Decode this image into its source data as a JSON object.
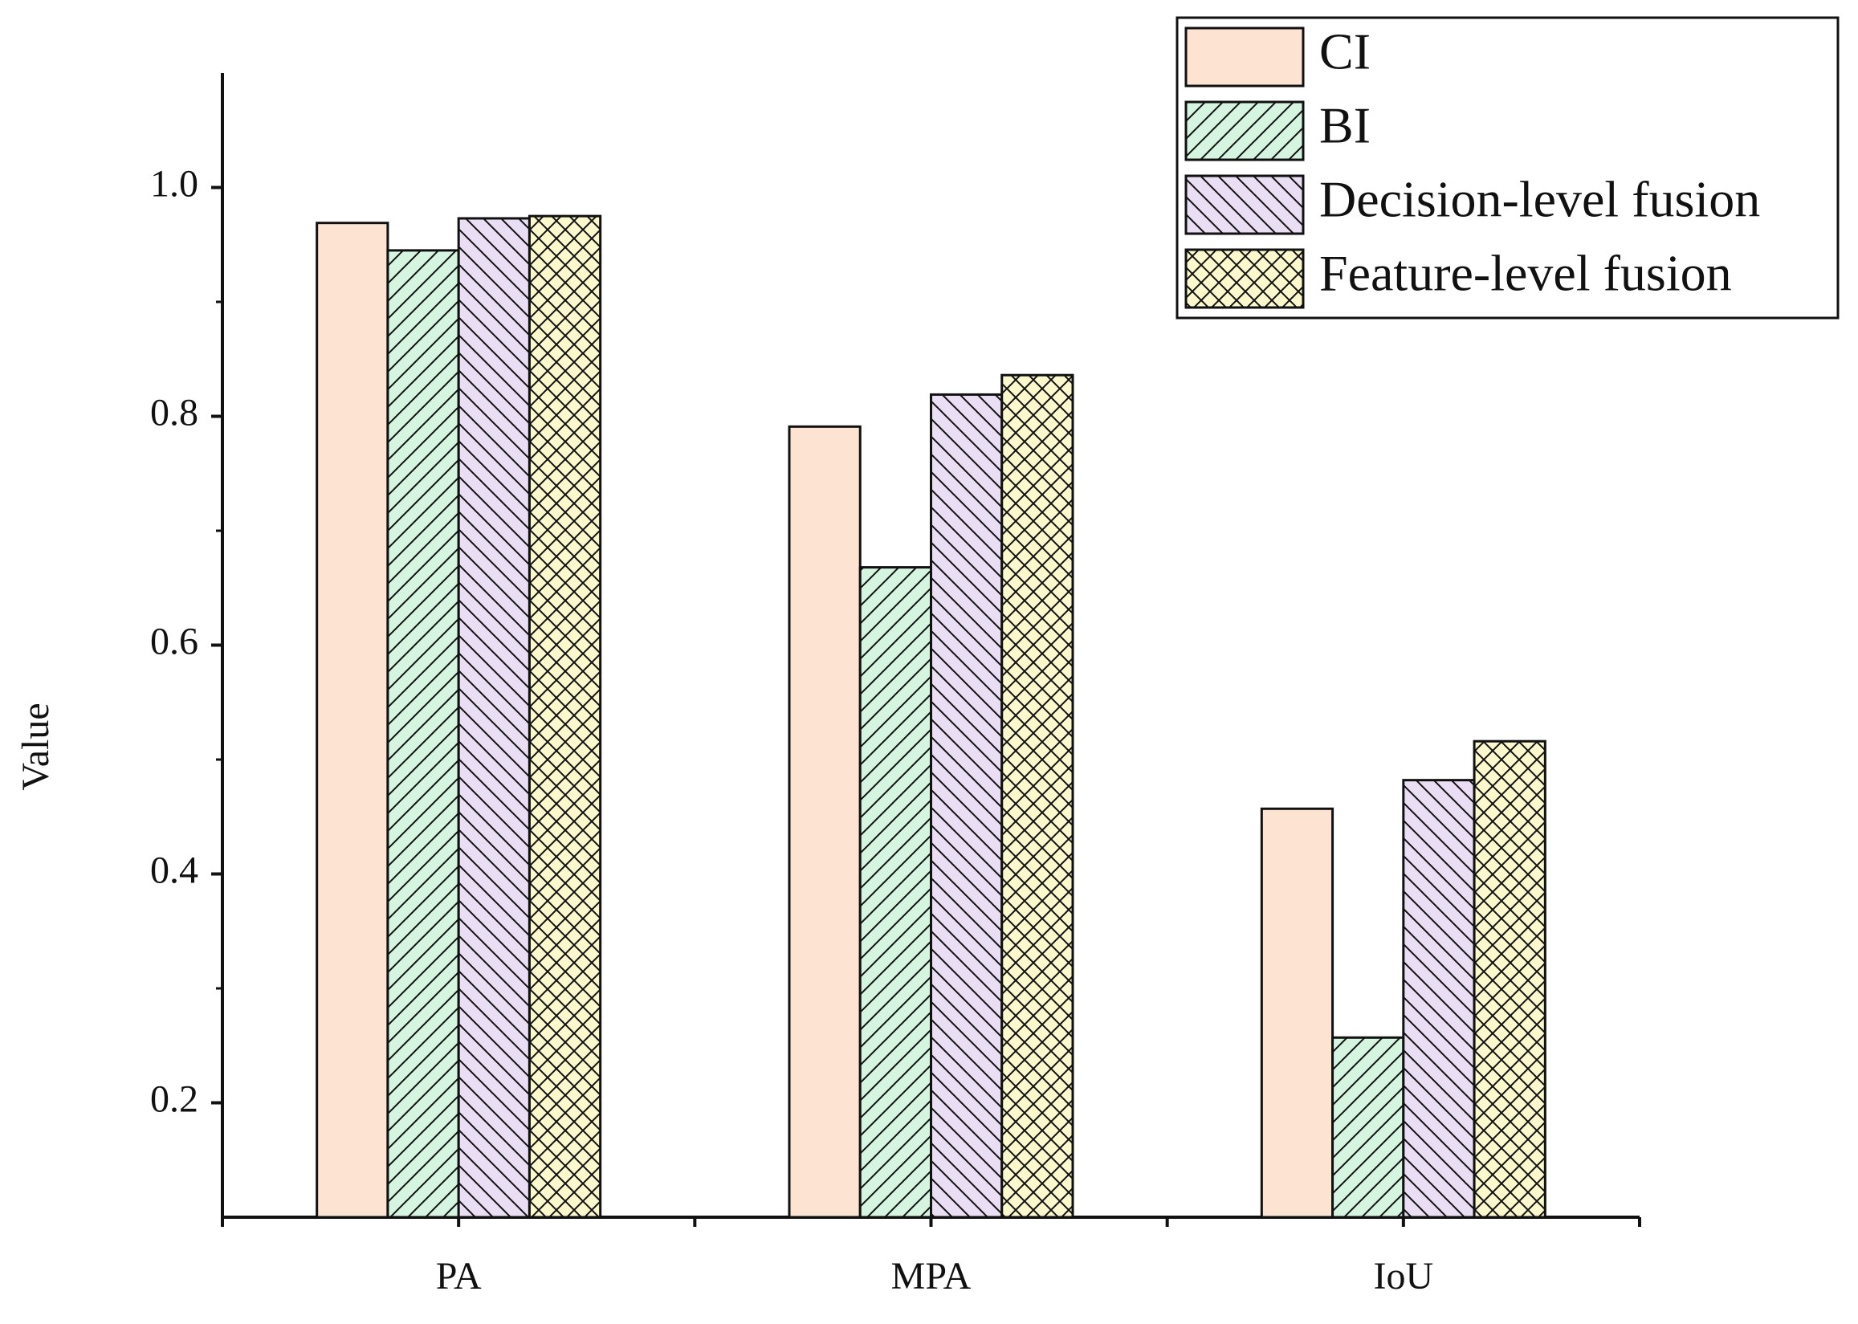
{
  "chart_data": {
    "type": "bar",
    "y_label": "Value",
    "categories": [
      "PA",
      "MPA",
      "IoU"
    ],
    "series": [
      {
        "name": "CI",
        "color": "#fde3d1",
        "hatch": "none",
        "values": [
          0.969,
          0.791,
          0.457
        ]
      },
      {
        "name": "BI",
        "color": "#d5f5e0",
        "hatch": "/",
        "values": [
          0.945,
          0.668,
          0.257
        ]
      },
      {
        "name": "Decision-level fusion",
        "color": "#e9def3",
        "hatch": "\\",
        "values": [
          0.973,
          0.819,
          0.482
        ]
      },
      {
        "name": "Feature-level fusion",
        "color": "#fbf8cd",
        "hatch": "x",
        "values": [
          0.975,
          0.836,
          0.516
        ]
      }
    ],
    "ylim": [
      0.1,
      1.1
    ],
    "yticks": [
      0.2,
      0.4,
      0.6,
      0.8,
      {
        "value": 1.0,
        "label": "1.0"
      }
    ],
    "yminor": [
      0.3,
      0.5,
      0.7,
      0.9
    ],
    "legend": "upper right",
    "grid": false
  }
}
